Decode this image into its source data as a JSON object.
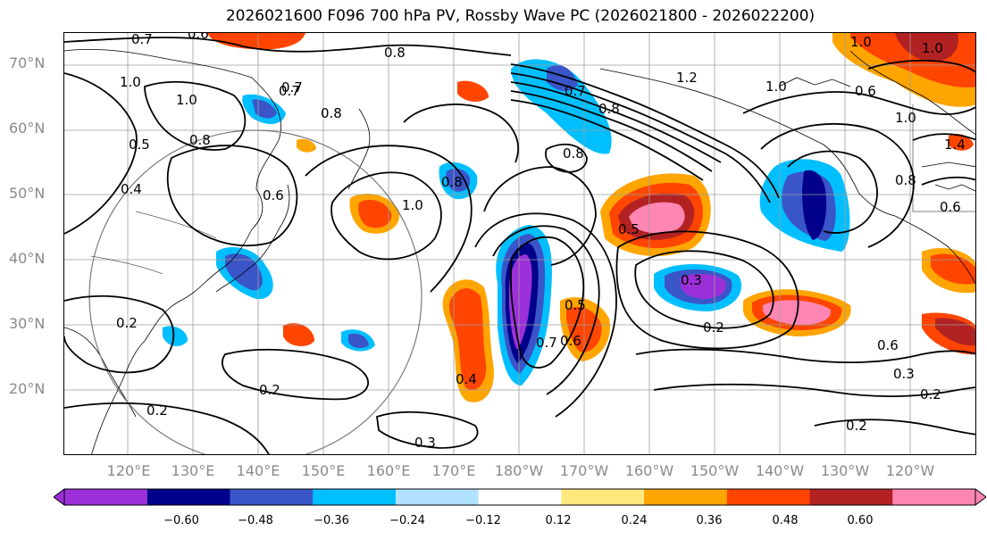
{
  "title": "2026021600 F096 700 hPa PV, Rossby Wave PC (2026021800 - 2026022200)",
  "lat_labels": [
    "70°N",
    "60°N",
    "50°N",
    "40°N",
    "30°N",
    "20°N"
  ],
  "lon_labels": [
    "120°E",
    "130°E",
    "140°E",
    "150°E",
    "160°E",
    "170°E",
    "180°W",
    "170°W",
    "160°W",
    "150°W",
    "140°W",
    "130°W",
    "120°W"
  ],
  "colorbar": {
    "colors": [
      "#9b30d9",
      "#00008b",
      "#3a55c8",
      "#00bfff",
      "#b0e2ff",
      "#ffffff",
      "#ffe97f",
      "#ffa500",
      "#ff4500",
      "#b22222",
      "#ff86b3"
    ],
    "ticks": [
      "−0.60",
      "−0.48",
      "−0.36",
      "−0.24",
      "−0.12",
      "0.12",
      "0.24",
      "0.36",
      "0.48",
      "0.60"
    ]
  },
  "contour_labels": [
    "0.7",
    "0.6",
    "0.8",
    "1.0",
    "1.2",
    "1.0",
    "0.6",
    "1.0",
    "1.0",
    "0.7",
    "1.0",
    "0.8",
    "0.5",
    "0.4",
    "0.8",
    "0.6",
    "0.8",
    "1.0",
    "0.7",
    "0.8",
    "0.5",
    "0.7",
    "1.0",
    "0.8",
    "0.3",
    "0.2",
    "0.6",
    "0.3",
    "0.2",
    "0.2",
    "0.2",
    "0.3",
    "0.4",
    "0.7",
    "0.6",
    "0.5",
    "1.4",
    "0.8",
    "0.6",
    "0.2",
    "0.2"
  ]
}
